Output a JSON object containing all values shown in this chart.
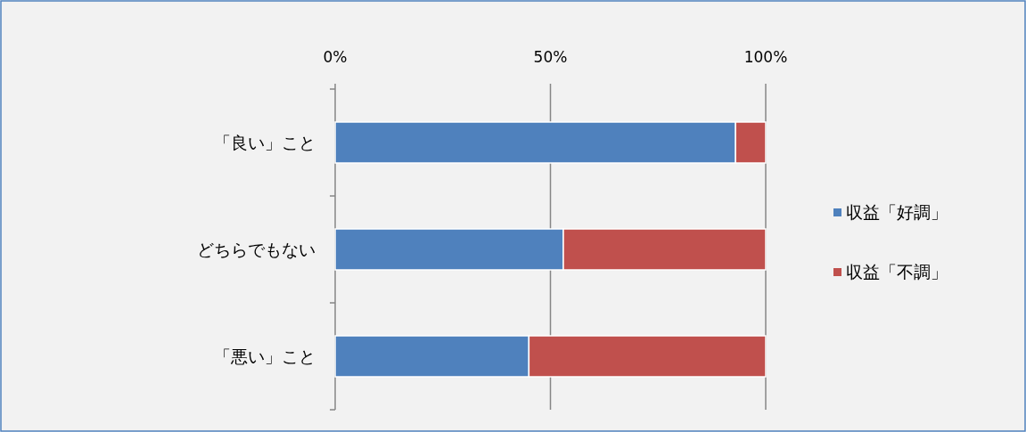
{
  "chart_data": {
    "type": "bar",
    "orientation": "horizontal",
    "stacked": true,
    "categories": [
      "「良い」こと",
      "どちらでもない",
      "「悪い」こと"
    ],
    "series": [
      {
        "name": "収益「好調」",
        "color": "#4f81bd",
        "values": [
          93,
          53,
          45
        ]
      },
      {
        "name": "収益「不調」",
        "color": "#c0504d",
        "values": [
          7,
          47,
          55
        ]
      }
    ],
    "xlim": [
      0,
      100
    ],
    "xticks": [
      {
        "value": 0,
        "label": "0%"
      },
      {
        "value": 50,
        "label": "50%"
      },
      {
        "value": 100,
        "label": "100%"
      }
    ],
    "grid": "x",
    "legend": "right"
  }
}
